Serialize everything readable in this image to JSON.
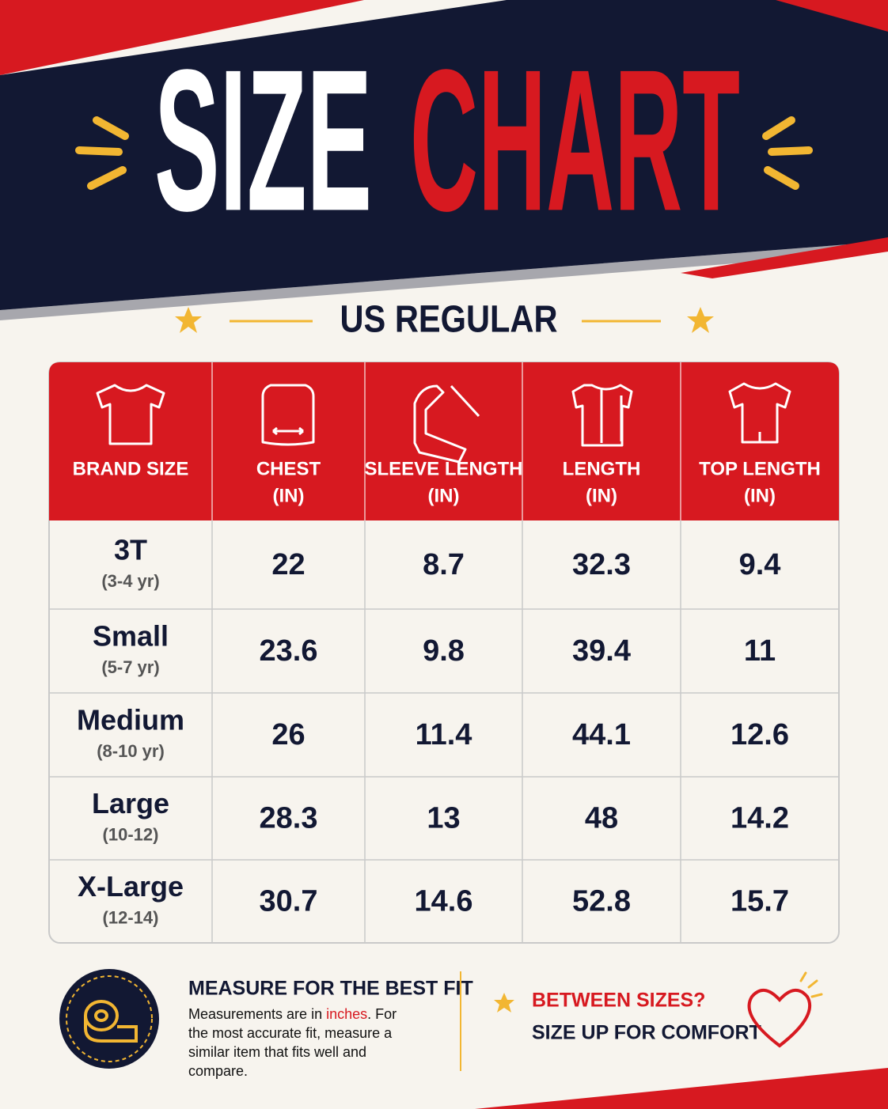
{
  "header": {
    "title_white": "SIZE",
    "title_red": "CHART",
    "subtitle": "US REGULAR"
  },
  "table": {
    "columns": [
      {
        "label": "BRAND SIZE"
      },
      {
        "label": "CHEST",
        "unit": "(IN)"
      },
      {
        "label": "SLEEVE LENGTH",
        "unit": "(IN)"
      },
      {
        "label": "LENGTH",
        "unit": "(IN)"
      },
      {
        "label": "TOP LENGTH",
        "unit": "(IN)"
      }
    ],
    "rows": [
      {
        "size": "3T",
        "age": "(3-4 yr)",
        "values": [
          "22",
          "8.7",
          "32.3",
          "9.4"
        ]
      },
      {
        "size": "Small",
        "age": "(5-7 yr)",
        "values": [
          "23.6",
          "9.8",
          "39.4",
          "11"
        ]
      },
      {
        "size": "Medium",
        "age": "(8-10 yr)",
        "values": [
          "26",
          "11.4",
          "44.1",
          "12.6"
        ]
      },
      {
        "size": "Large",
        "age": "(10-12)",
        "values": [
          "28.3",
          "13",
          "48",
          "14.2"
        ]
      },
      {
        "size": "X-Large",
        "age": "(12-14)",
        "values": [
          "30.7",
          "14.6",
          "52.8",
          "15.7"
        ]
      }
    ]
  },
  "footer": {
    "measure_title": "MEASURE FOR THE BEST FIT",
    "measure_text": [
      "Measurements are in ",
      "inches",
      ". For the most accurate fit, measure a similar item that fits well and compare."
    ],
    "tip_title": "BETWEEN SIZES?",
    "tip_text": "SIZE UP FOR COMFORT"
  }
}
